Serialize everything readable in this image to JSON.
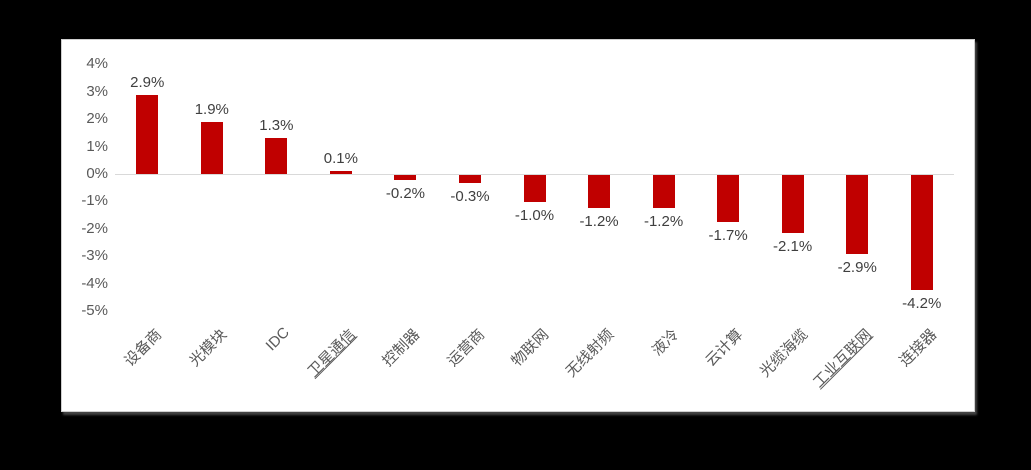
{
  "chart_data": {
    "type": "bar",
    "title": "",
    "xlabel": "",
    "ylabel": "",
    "categories": [
      "设备商",
      "光模块",
      "IDC",
      "卫星通信",
      "控制器",
      "运营商",
      "物联网",
      "无线射频",
      "液冷",
      "云计算",
      "光缆海缆",
      "工业互联网",
      "连接器"
    ],
    "values": [
      2.9,
      1.9,
      1.3,
      0.1,
      -0.2,
      -0.3,
      -1.0,
      -1.2,
      -1.2,
      -1.7,
      -2.1,
      -2.9,
      -4.2
    ],
    "data_labels": [
      "2.9%",
      "1.9%",
      "1.3%",
      "0.1%",
      "-0.2%",
      "-0.3%",
      "-1.0%",
      "-1.2%",
      "-1.2%",
      "-1.7%",
      "-2.1%",
      "-2.9%",
      "-4.2%"
    ],
    "underlined_categories": [
      "卫星通信",
      "工业互联网"
    ],
    "y_ticks": [
      "4%",
      "3%",
      "2%",
      "1%",
      "0%",
      "-1%",
      "-2%",
      "-3%",
      "-4%",
      "-5%"
    ],
    "y_tick_values": [
      4,
      3,
      2,
      1,
      0,
      -1,
      -2,
      -3,
      -4,
      -5
    ],
    "ylim": [
      -5,
      4
    ],
    "legend": "none",
    "grid": "off",
    "bar_color": "#c00000",
    "axis_line_color": "#d9d9d9",
    "tick_label_color": "#595959",
    "data_label_color": "#3f3f3f",
    "panel_background": "#ffffff",
    "page_background": "#000000"
  }
}
